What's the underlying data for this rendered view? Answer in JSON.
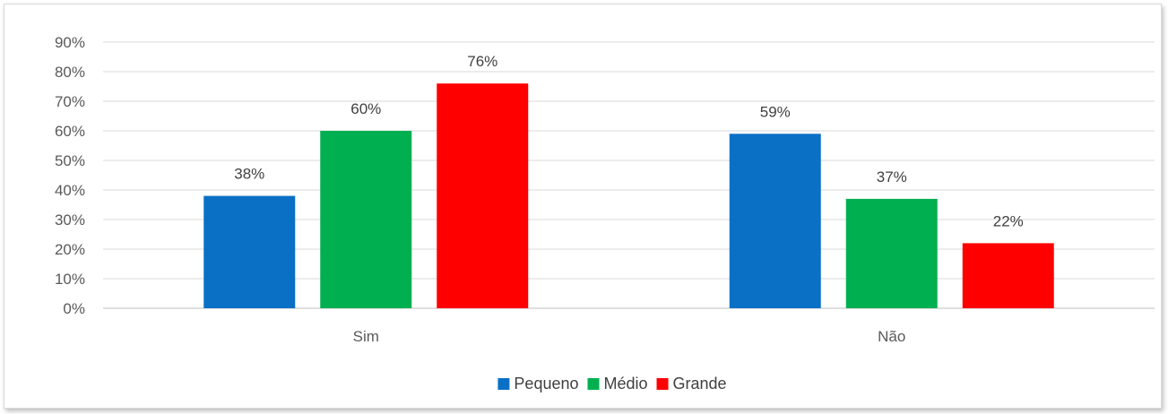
{
  "chart_data": {
    "type": "bar",
    "categories": [
      "Sim",
      "Não"
    ],
    "series": [
      {
        "name": "Pequeno",
        "values": [
          38,
          59
        ],
        "labels": [
          "38%",
          "59%"
        ],
        "color": "#0a70c6"
      },
      {
        "name": "Médio",
        "values": [
          60,
          37
        ],
        "labels": [
          "60%",
          "37%"
        ],
        "color": "#00b050"
      },
      {
        "name": "Grande",
        "values": [
          76,
          22
        ],
        "labels": [
          "76%",
          "22%"
        ],
        "color": "#ff0000"
      }
    ],
    "yticks": [
      0,
      10,
      20,
      30,
      40,
      50,
      60,
      70,
      80,
      90
    ],
    "ytick_labels": [
      "0%",
      "10%",
      "20%",
      "30%",
      "40%",
      "50%",
      "60%",
      "70%",
      "80%",
      "90%"
    ],
    "ylim": [
      0,
      90
    ],
    "grid": true,
    "legend": "bottom"
  }
}
